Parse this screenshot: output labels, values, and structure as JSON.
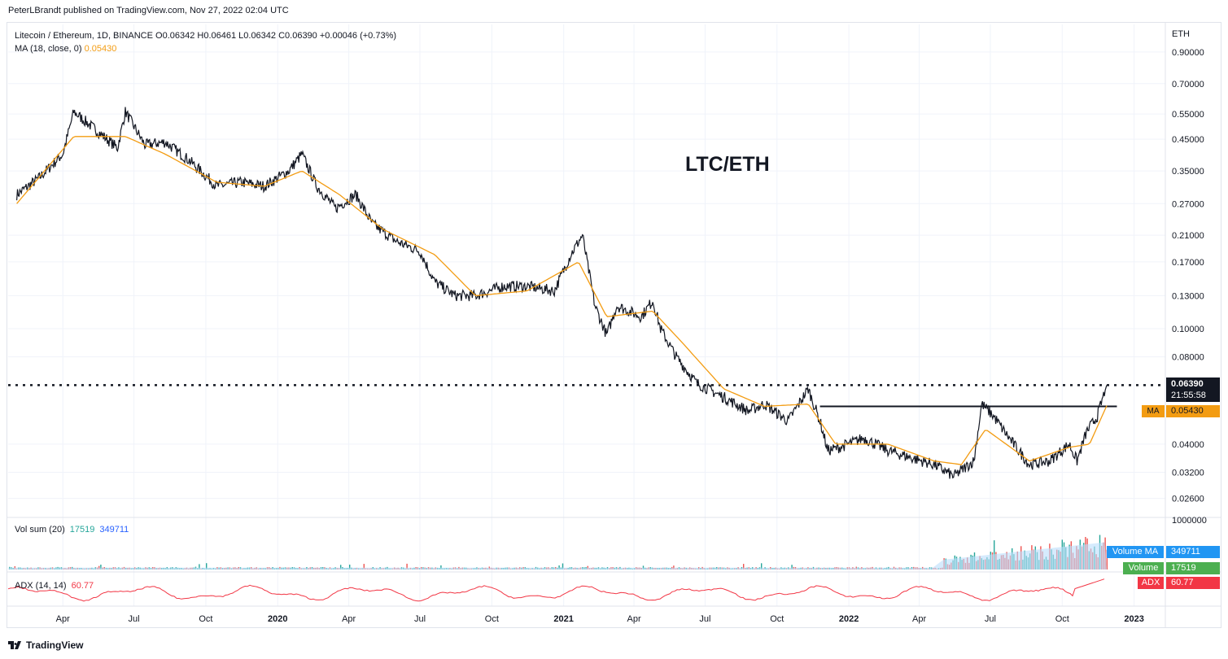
{
  "header": {
    "publisher_line": "PeterLBrandt published on TradingView.com, Nov 27, 2022 02:04 UTC"
  },
  "legend": {
    "symbol_line": "Litecoin / Ethereum, 1D, BINANCE  O0.06342  H0.06461  L0.06342  C0.06390  +0.00046 (+0.73%)",
    "ma_label": "MA (18, close, 0)",
    "ma_value": "0.05430"
  },
  "annotation_title": "LTC/ETH",
  "currency_label": "ETH",
  "price_axis": {
    "ticks": [
      "0.90000",
      "0.70000",
      "0.55000",
      "0.45000",
      "0.35000",
      "0.27000",
      "0.21000",
      "0.17000",
      "0.13000",
      "0.10000",
      "0.08000",
      "0.06390",
      "0.04000",
      "0.03200",
      "0.02600"
    ],
    "last_price": "0.06390",
    "countdown": "21:55:58",
    "ma_tag_label": "MA",
    "ma_tag_value": "0.05430"
  },
  "volume_pane": {
    "legend_label": "Vol sum (20)",
    "volume_value": "17519",
    "volume_ma_value": "349711",
    "axis_top": "1000000",
    "tag_volume_ma_label": "Volume MA",
    "tag_volume_ma_value": "349711",
    "tag_volume_label": "Volume",
    "tag_volume_value": "17519"
  },
  "adx_pane": {
    "legend_label": "ADX (14, 14)",
    "value": "60.77",
    "tag_label": "ADX",
    "tag_value": "60.77"
  },
  "time_axis": {
    "labels": [
      "Apr",
      "Jul",
      "Oct",
      "2020",
      "Apr",
      "Jul",
      "Oct",
      "2021",
      "Apr",
      "Jul",
      "Oct",
      "2022",
      "Apr",
      "Jul",
      "Oct",
      "2023"
    ]
  },
  "footer": {
    "brand": "TradingView"
  },
  "colors": {
    "price_line": "#131722",
    "ma_line": "#f39c12",
    "adx_line": "#f23645",
    "volume_up": "#26a69a",
    "volume_down": "#ef5350",
    "volume_ma": "#90caf9"
  },
  "chart_data": {
    "type": "line",
    "scale": "log",
    "title": "LTC/ETH",
    "series": [
      {
        "name": "Litecoin / Ethereum",
        "x": [
          "2019-02-01",
          "2019-03-01",
          "2019-04-01",
          "2019-04-15",
          "2019-05-15",
          "2019-06-10",
          "2019-06-20",
          "2019-07-15",
          "2019-08-10",
          "2019-09-10",
          "2019-10-15",
          "2019-11-15",
          "2019-12-15",
          "2020-01-15",
          "2020-02-01",
          "2020-02-20",
          "2020-03-15",
          "2020-04-10",
          "2020-05-01",
          "2020-06-01",
          "2020-07-01",
          "2020-07-20",
          "2020-08-15",
          "2020-09-10",
          "2020-10-15",
          "2020-11-15",
          "2020-12-20",
          "2021-01-10",
          "2021-01-25",
          "2021-02-10",
          "2021-02-25",
          "2021-03-10",
          "2021-04-10",
          "2021-04-25",
          "2021-05-05",
          "2021-05-25",
          "2021-06-20",
          "2021-07-25",
          "2021-08-25",
          "2021-09-15",
          "2021-10-15",
          "2021-11-10",
          "2021-11-25",
          "2021-12-05",
          "2021-12-20",
          "2022-01-20",
          "2022-02-20",
          "2022-03-20",
          "2022-04-20",
          "2022-05-15",
          "2022-06-10",
          "2022-06-20",
          "2022-07-05",
          "2022-07-25",
          "2022-08-20",
          "2022-09-15",
          "2022-10-10",
          "2022-10-20",
          "2022-11-01",
          "2022-11-15",
          "2022-11-27"
        ],
        "values": [
          0.29,
          0.33,
          0.4,
          0.56,
          0.48,
          0.42,
          0.56,
          0.43,
          0.44,
          0.38,
          0.31,
          0.32,
          0.31,
          0.35,
          0.4,
          0.31,
          0.26,
          0.29,
          0.23,
          0.2,
          0.185,
          0.145,
          0.13,
          0.13,
          0.14,
          0.14,
          0.135,
          0.18,
          0.21,
          0.12,
          0.095,
          0.12,
          0.11,
          0.125,
          0.1,
          0.08,
          0.065,
          0.058,
          0.052,
          0.055,
          0.048,
          0.062,
          0.048,
          0.038,
          0.039,
          0.042,
          0.038,
          0.036,
          0.034,
          0.031,
          0.035,
          0.055,
          0.05,
          0.042,
          0.034,
          0.035,
          0.04,
          0.035,
          0.044,
          0.05,
          0.0639
        ]
      },
      {
        "name": "MA (18, close, 0)",
        "x": [
          "2019-02-01",
          "2019-04-15",
          "2019-06-20",
          "2019-08-10",
          "2019-10-15",
          "2019-12-15",
          "2020-02-01",
          "2020-03-20",
          "2020-05-15",
          "2020-07-20",
          "2020-09-10",
          "2020-11-15",
          "2021-01-20",
          "2021-02-25",
          "2021-04-25",
          "2021-06-01",
          "2021-07-25",
          "2021-09-15",
          "2021-11-10",
          "2021-12-15",
          "2022-02-20",
          "2022-04-20",
          "2022-05-25",
          "2022-06-25",
          "2022-08-20",
          "2022-10-10",
          "2022-11-05",
          "2022-11-27"
        ],
        "values": [
          0.27,
          0.46,
          0.46,
          0.4,
          0.32,
          0.31,
          0.35,
          0.29,
          0.22,
          0.18,
          0.13,
          0.135,
          0.17,
          0.11,
          0.115,
          0.09,
          0.062,
          0.054,
          0.055,
          0.04,
          0.04,
          0.035,
          0.034,
          0.045,
          0.035,
          0.039,
          0.04,
          0.0543
        ]
      }
    ],
    "horizontal_lines": [
      {
        "label": "last price",
        "value": 0.0639,
        "style": "dotted"
      },
      {
        "label": "neckline",
        "value": 0.054,
        "from": "2021-11-25",
        "to": "2022-12-10",
        "style": "solid"
      }
    ],
    "y_ticks": [
      0.9,
      0.7,
      0.55,
      0.45,
      0.35,
      0.27,
      0.21,
      0.17,
      0.13,
      0.1,
      0.08,
      0.04,
      0.032,
      0.026
    ],
    "volume": {
      "axis_max": 1000000,
      "last": 17519,
      "ma": 349711
    },
    "adx": {
      "last": 60.77
    },
    "grid": true,
    "legend": "top-left"
  }
}
